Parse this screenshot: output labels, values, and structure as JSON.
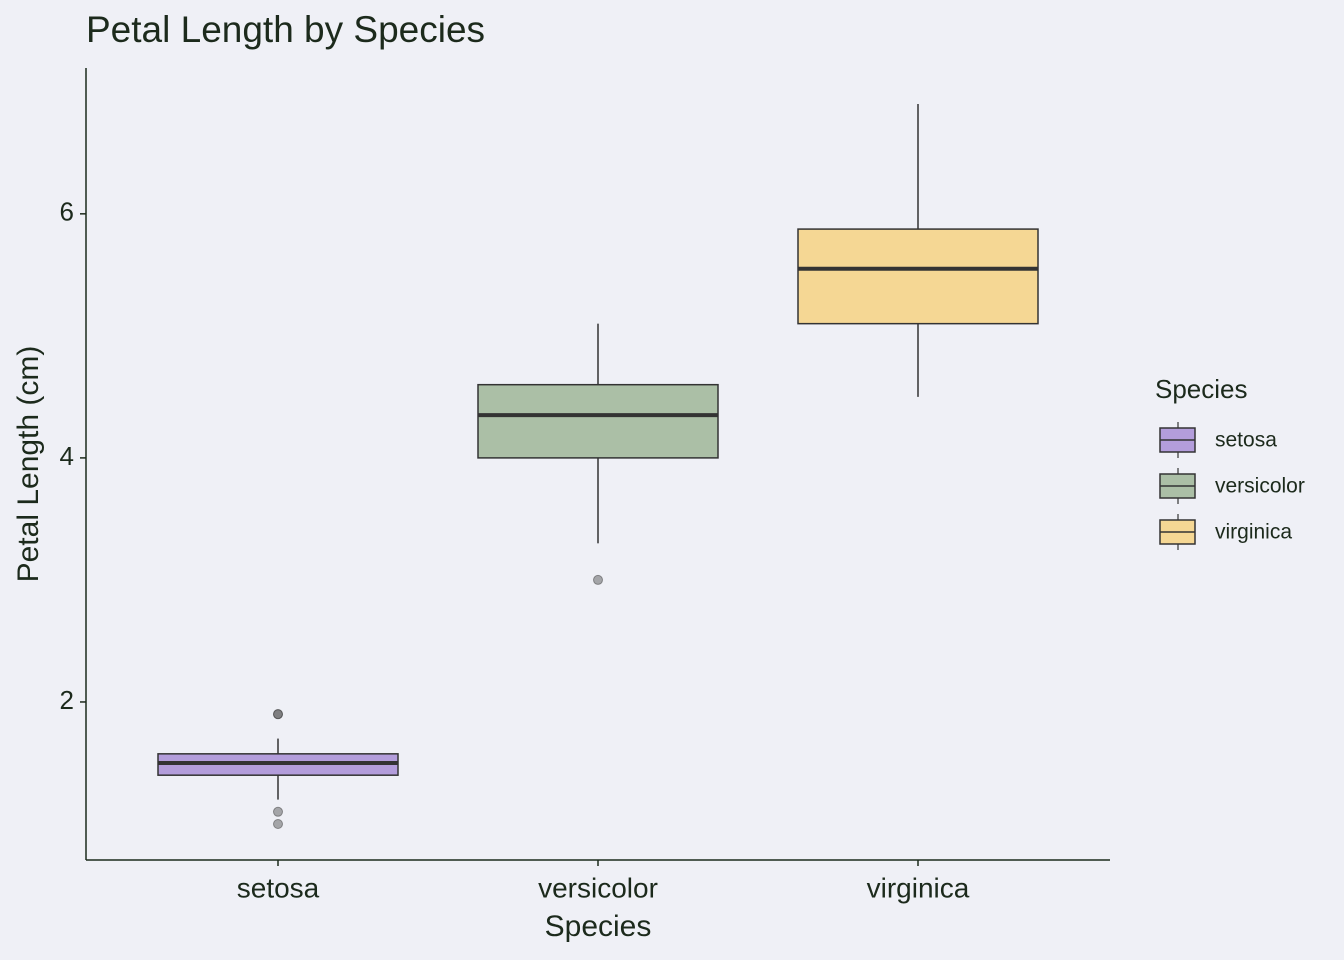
{
  "chart_data": {
    "type": "box",
    "title": "Petal Length by Species",
    "x_label": "Species",
    "y_label": "Petal Length (cm)",
    "legend_title": "Species",
    "categories": [
      "setosa",
      "versicolor",
      "virginica"
    ],
    "boxes": [
      {
        "color": "#b39ddb",
        "min": 1.2,
        "q1": 1.4,
        "median": 1.5,
        "q3": 1.575,
        "max": 1.7,
        "outliers": [
          1.0,
          1.1,
          1.9,
          1.9
        ]
      },
      {
        "color": "#abbfa6",
        "min": 3.3,
        "q1": 4.0,
        "median": 4.35,
        "q3": 4.6,
        "max": 5.1,
        "outliers": [
          3.0
        ]
      },
      {
        "color": "#f5d794",
        "min": 4.5,
        "q1": 5.1,
        "median": 5.55,
        "q3": 5.875,
        "max": 6.9,
        "outliers": []
      }
    ],
    "ylim": [
      0.705,
      7.195
    ],
    "yticks": [
      2,
      4,
      6
    ],
    "legend": "right"
  }
}
